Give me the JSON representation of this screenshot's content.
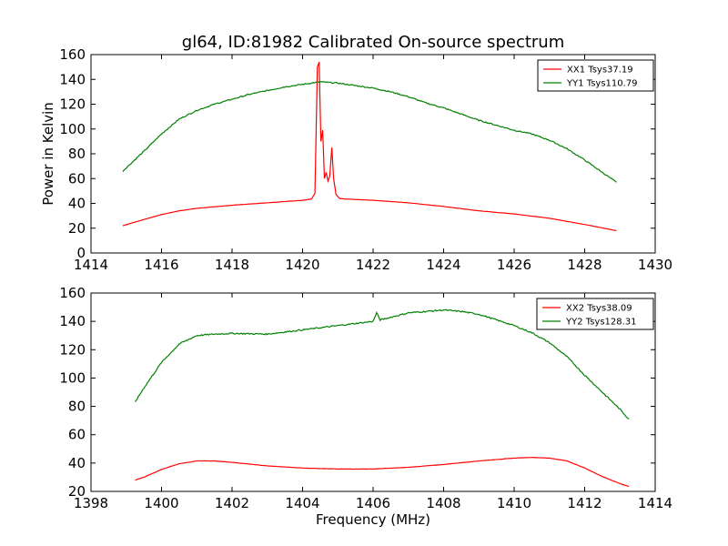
{
  "chart_data": [
    {
      "type": "line",
      "title": "gl64, ID:81982 Calibrated On-source spectrum",
      "xlabel": "",
      "ylabel": "Power in Kelvin",
      "xlim": [
        1414,
        1430
      ],
      "ylim": [
        0,
        160
      ],
      "xticks": [
        1414,
        1416,
        1418,
        1420,
        1422,
        1424,
        1426,
        1428,
        1430
      ],
      "yticks": [
        0,
        20,
        40,
        60,
        80,
        100,
        120,
        140,
        160
      ],
      "legend_position": "top-right",
      "series": [
        {
          "name": "XX1 Tsys37.19",
          "color": "#ff0000",
          "x": [
            1414.9,
            1415.5,
            1416.0,
            1416.5,
            1417.0,
            1418.0,
            1419.0,
            1420.0,
            1420.25,
            1420.35,
            1420.42,
            1420.47,
            1420.52,
            1420.57,
            1420.62,
            1420.67,
            1420.72,
            1420.77,
            1420.83,
            1420.88,
            1420.95,
            1421.05,
            1421.2,
            1422.0,
            1423.0,
            1424.0,
            1425.0,
            1426.0,
            1427.0,
            1428.0,
            1428.9
          ],
          "y": [
            22,
            27,
            31,
            34,
            36,
            38.5,
            40.5,
            42.5,
            43.5,
            48,
            150,
            154,
            90,
            99,
            60,
            65,
            58,
            62,
            85,
            60,
            47,
            44,
            43.5,
            42.5,
            40.5,
            37.5,
            34,
            31.5,
            28,
            23,
            18
          ]
        },
        {
          "name": "YY1 Tsys110.79",
          "color": "#008000",
          "x": [
            1414.9,
            1415.5,
            1416.0,
            1416.5,
            1417.0,
            1417.5,
            1418.0,
            1418.5,
            1419.0,
            1419.5,
            1420.0,
            1420.5,
            1421.0,
            1421.5,
            1422.0,
            1422.5,
            1423.0,
            1423.5,
            1424.0,
            1424.5,
            1425.0,
            1425.5,
            1426.0,
            1426.5,
            1427.0,
            1427.5,
            1428.0,
            1428.5,
            1428.9
          ],
          "y": [
            66,
            82,
            96,
            108,
            115,
            120,
            124,
            128,
            131,
            134,
            136,
            138,
            137,
            135,
            133,
            130,
            126,
            121,
            117,
            112,
            107,
            103,
            99,
            96,
            91,
            84,
            75,
            65,
            57
          ]
        }
      ]
    },
    {
      "type": "line",
      "title": "",
      "xlabel": "Frequency (MHz)",
      "ylabel": "",
      "xlim": [
        1398,
        1414
      ],
      "ylim": [
        20,
        160
      ],
      "xticks": [
        1398,
        1400,
        1402,
        1404,
        1406,
        1408,
        1410,
        1412,
        1414
      ],
      "yticks": [
        20,
        40,
        60,
        80,
        100,
        120,
        140,
        160
      ],
      "legend_position": "top-right",
      "series": [
        {
          "name": "XX2 Tsys38.09",
          "color": "#ff0000",
          "x": [
            1399.25,
            1399.5,
            1400.0,
            1400.5,
            1401.0,
            1401.5,
            1402.0,
            1403.0,
            1404.0,
            1405.0,
            1406.0,
            1407.0,
            1408.0,
            1409.0,
            1410.0,
            1410.5,
            1411.0,
            1411.5,
            1412.0,
            1412.5,
            1413.0,
            1413.25
          ],
          "y": [
            28,
            30,
            35.5,
            39.5,
            41.5,
            41.5,
            40.5,
            38,
            36.5,
            35.8,
            35.8,
            37,
            39,
            41.5,
            43.5,
            44,
            43.5,
            41.5,
            36.5,
            30.5,
            25.5,
            23.5
          ]
        },
        {
          "name": "YY2 Tsys128.31",
          "color": "#008000",
          "x": [
            1399.25,
            1399.5,
            1400.0,
            1400.5,
            1401.0,
            1401.5,
            1402.0,
            1403.0,
            1404.0,
            1405.0,
            1406.0,
            1406.1,
            1406.2,
            1407.0,
            1408.0,
            1408.5,
            1409.0,
            1409.5,
            1410.0,
            1410.5,
            1411.0,
            1411.5,
            1412.0,
            1412.5,
            1413.0,
            1413.25
          ],
          "y": [
            83,
            93,
            111,
            124,
            130,
            131,
            131.5,
            131,
            134,
            137,
            140,
            146,
            141,
            146,
            148,
            147,
            145,
            141,
            137,
            132,
            125,
            115,
            102,
            90,
            78,
            71
          ]
        }
      ]
    }
  ]
}
